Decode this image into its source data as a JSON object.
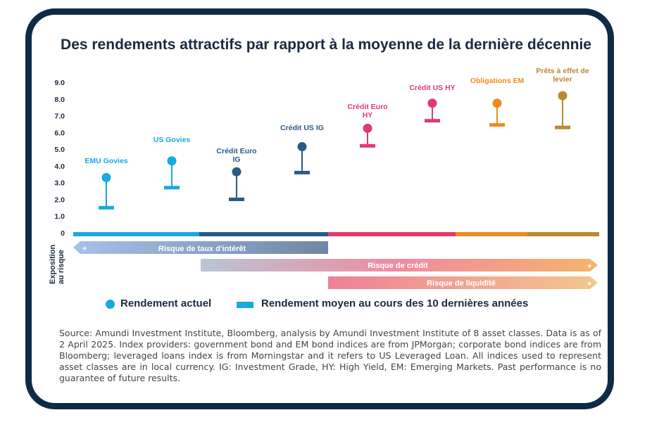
{
  "chart_data": {
    "type": "lollipop",
    "title": "Des rendements attractifs par rapport à la moyenne de la dernière décennie",
    "ylim": [
      0,
      9
    ],
    "yticks": [
      "0",
      "1.0",
      "2.0",
      "3.0",
      "4.0",
      "5.0",
      "6.0",
      "7.0",
      "8.0",
      "9.0"
    ],
    "categories": [
      {
        "label": "EMU Govies",
        "current": 3.3,
        "average": 1.5,
        "color": "#17a9e0"
      },
      {
        "label": "US Govies",
        "current": 4.3,
        "average": 2.7,
        "color": "#17a9e0"
      },
      {
        "label": "Crédit Euro IG",
        "current": 3.65,
        "average": 2.0,
        "color": "#2a5a86"
      },
      {
        "label": "Crédit US IG",
        "current": 5.15,
        "average": 3.6,
        "color": "#2a5a86"
      },
      {
        "label": "Crédit Euro HY",
        "current": 6.25,
        "average": 5.2,
        "color": "#e13a6b"
      },
      {
        "label": "Crédit US HY",
        "current": 7.75,
        "average": 6.7,
        "color": "#e13a6b"
      },
      {
        "label": "Obligations EM",
        "current": 7.75,
        "average": 6.45,
        "color": "#ef8a1f"
      },
      {
        "label": "Prêts à effet de levier",
        "current": 8.2,
        "average": 6.3,
        "color": "#b98a30"
      }
    ],
    "legend": {
      "current": "Rendement actuel",
      "average": "Rendement moyen au cours des 10 dernières années"
    },
    "risk_axis_label": "Exposition au risque",
    "risk_bands": [
      {
        "label": "Risque de taux d'intérêt",
        "symbol": "+"
      },
      {
        "label": "Risque de crédit",
        "symbol": "+"
      },
      {
        "label": "Risque de liquidité",
        "symbol": "+"
      }
    ]
  },
  "source": "Source: Amundi Investment Institute, Bloomberg, analysis by Amundi Investment Institute of 8 asset classes. Data is as of 2 April 2025. Index providers: government bond and EM bond indices are from JPMorgan; corporate bond indices are from Bloomberg; leveraged loans index is from Morningstar and it refers to US Leveraged Loan. All indices used to represent asset classes are in local currency. IG: Investment Grade, HY: High Yield, EM: Emerging Markets. Past performance is no guarantee of future results."
}
